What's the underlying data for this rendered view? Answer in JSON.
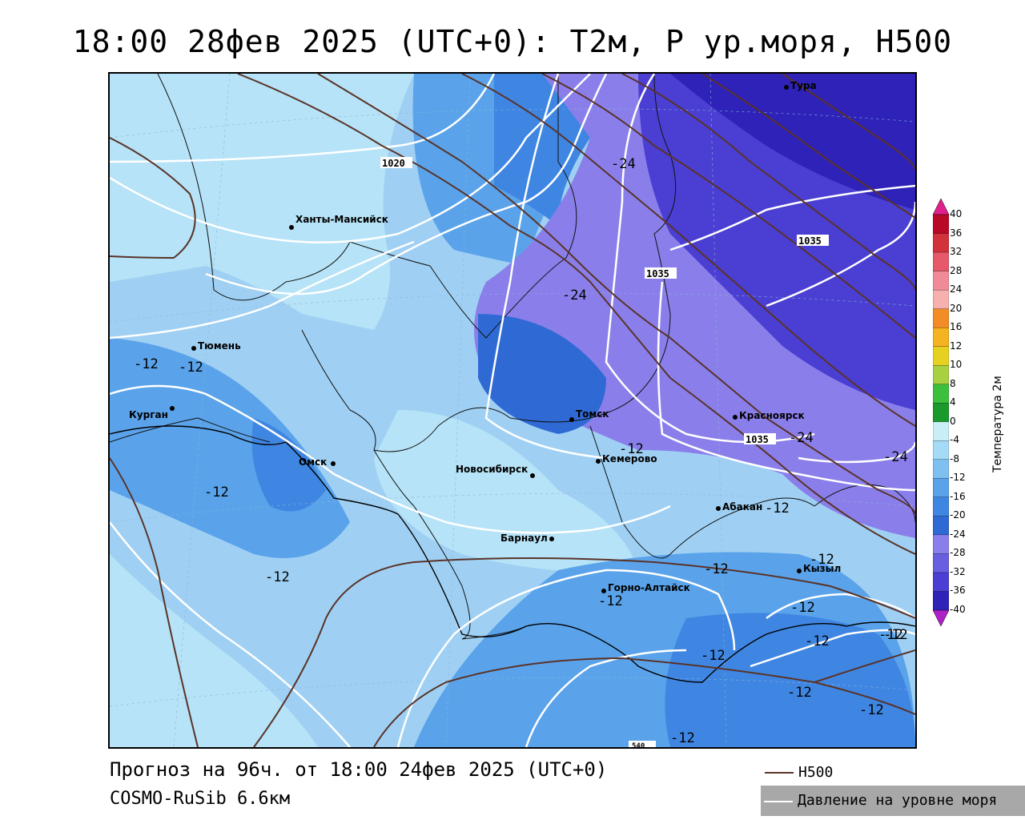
{
  "title": "18:00 28фев 2025 (UTC+0): T2м, P ур.моря, H500",
  "footer": {
    "forecast": "Прогноз на 96ч. от 18:00 24фев 2025 (UTC+0)",
    "model": "COSMO-RuSib 6.6км"
  },
  "line_legend": {
    "h500": "H500",
    "slp": "Давление на уровне моря",
    "h500_color": "#5a3328",
    "slp_color": "#ffffff"
  },
  "color_scale": {
    "title": "Температура 2м",
    "ticks": [
      "40",
      "36",
      "32",
      "28",
      "24",
      "20",
      "16",
      "12",
      "10",
      "8",
      "4",
      "0",
      "-4",
      "-8",
      "-12",
      "-16",
      "-20",
      "-24",
      "-28",
      "-32",
      "-36",
      "-40"
    ],
    "colors": [
      "#a0001a",
      "#b80a26",
      "#d2323c",
      "#e5596a",
      "#f08a96",
      "#f6b0ae",
      "#f28c26",
      "#f4b320",
      "#e6d020",
      "#a8d040",
      "#3cbf3c",
      "#1a9a2c",
      "#c8eef7",
      "#a6dbf7",
      "#7ec1f1",
      "#5aa3ea",
      "#3f86e2",
      "#2f6ad4",
      "#8a7fea",
      "#6a5ee0",
      "#4a3fd2",
      "#2e22b8",
      "#24188e"
    ]
  },
  "cities": [
    {
      "name": "Тура"
    },
    {
      "name": "Ханты-Мансийск"
    },
    {
      "name": "Тюмень"
    },
    {
      "name": "Курган"
    },
    {
      "name": "Омск"
    },
    {
      "name": "Новосибирск"
    },
    {
      "name": "Томск"
    },
    {
      "name": "Кемерово"
    },
    {
      "name": "Красноярск"
    },
    {
      "name": "Абакан"
    },
    {
      "name": "Барнаул"
    },
    {
      "name": "Горно-Алтайск"
    },
    {
      "name": "Кызыл"
    }
  ],
  "pressure_labels": [
    "1020",
    "1035",
    "1035",
    "1035"
  ],
  "h500_label": "540",
  "isotherm_labels": [
    "-24",
    "-24",
    "-24",
    "-24",
    "-12",
    "-12",
    "-12",
    "-12",
    "-12",
    "-12",
    "-12",
    "-12",
    "-12",
    "-12",
    "-12",
    "-12",
    "-12",
    "-12",
    "-12",
    "-12",
    "-12"
  ]
}
